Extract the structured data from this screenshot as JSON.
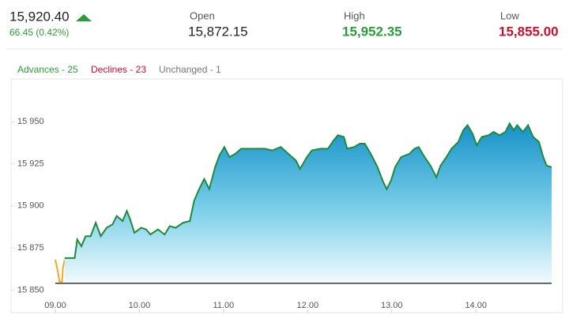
{
  "header": {
    "price": "15,920.40",
    "change": "66.45 (0.42%)",
    "open_label": "Open",
    "open": "15,872.15",
    "high_label": "High",
    "high": "15,952.35",
    "low_label": "Low",
    "low": "15,855.00"
  },
  "breadth": {
    "advances": "Advances - 25",
    "declines": "Declines - 23",
    "unchanged": "Unchanged - 1"
  },
  "chart_data": {
    "type": "line",
    "xlim": [
      9,
      14.9
    ],
    "xticks": [
      {
        "value": 9,
        "label": "09.00"
      },
      {
        "value": 10,
        "label": "10.00"
      },
      {
        "value": 11,
        "label": "11.00"
      },
      {
        "value": 12,
        "label": "12.00"
      },
      {
        "value": 13,
        "label": "13.00"
      },
      {
        "value": 14,
        "label": "14.00"
      }
    ],
    "ylim": [
      15845,
      15975
    ],
    "yticks": [
      {
        "value": 15850,
        "label": "15 850"
      },
      {
        "value": 15875,
        "label": "15 875"
      },
      {
        "value": 15900,
        "label": "15 900"
      },
      {
        "value": 15925,
        "label": "15 925"
      },
      {
        "value": 15950,
        "label": "15 950"
      }
    ],
    "reference_value": 15854,
    "series": [
      {
        "color": "#f5a623",
        "area": false,
        "x": [
          9.0,
          9.03,
          9.05,
          9.08,
          9.09,
          9.11
        ],
        "values": [
          15868,
          15861,
          15855,
          15855,
          15863,
          15868
        ]
      },
      {
        "color": "#1e8a3c",
        "area": true,
        "x": [
          9.11,
          9.23,
          9.26,
          9.31,
          9.36,
          9.42,
          9.48,
          9.54,
          9.61,
          9.68,
          9.73,
          9.8,
          9.85,
          9.89,
          9.94,
          10.02,
          10.08,
          10.13,
          10.22,
          10.3,
          10.36,
          10.43,
          10.52,
          10.6,
          10.65,
          10.71,
          10.77,
          10.83,
          10.9,
          10.95,
          11.01,
          11.07,
          11.14,
          11.21,
          11.3,
          11.39,
          11.49,
          11.58,
          11.68,
          11.77,
          11.86,
          11.91,
          11.99,
          12.05,
          12.15,
          12.24,
          12.31,
          12.36,
          12.43,
          12.47,
          12.55,
          12.62,
          12.68,
          12.76,
          12.83,
          12.9,
          12.94,
          12.99,
          13.04,
          13.11,
          13.21,
          13.27,
          13.32,
          13.39,
          13.46,
          13.53,
          13.58,
          13.65,
          13.71,
          13.79,
          13.85,
          13.9,
          13.96,
          14.01,
          14.07,
          14.15,
          14.21,
          14.28,
          14.35,
          14.4,
          14.45,
          14.49,
          14.56,
          14.62,
          14.68,
          14.75,
          14.8,
          14.84,
          14.9
        ],
        "values": [
          15869,
          15869,
          15880,
          15876,
          15882,
          15882,
          15890,
          15882,
          15887,
          15889,
          15894,
          15891,
          15897,
          15892,
          15884,
          15887,
          15886,
          15883,
          15886,
          15883,
          15888,
          15887,
          15890,
          15891,
          15903,
          15910,
          15916,
          15910,
          15923,
          15930,
          15935,
          15929,
          15931,
          15934,
          15934,
          15934,
          15934,
          15933,
          15935,
          15931,
          15927,
          15922,
          15929,
          15933,
          15934,
          15934,
          15939,
          15942,
          15941,
          15934,
          15935,
          15937,
          15937,
          15930,
          15923,
          15914,
          15910,
          15915,
          15923,
          15929,
          15931,
          15934,
          15935,
          15929,
          15924,
          15917,
          15924,
          15929,
          15934,
          15938,
          15945,
          15948,
          15943,
          15936,
          15941,
          15942,
          15944,
          15942,
          15944,
          15949,
          15945,
          15948,
          15944,
          15948,
          15941,
          15938,
          15929,
          15924,
          15923
        ]
      }
    ]
  }
}
